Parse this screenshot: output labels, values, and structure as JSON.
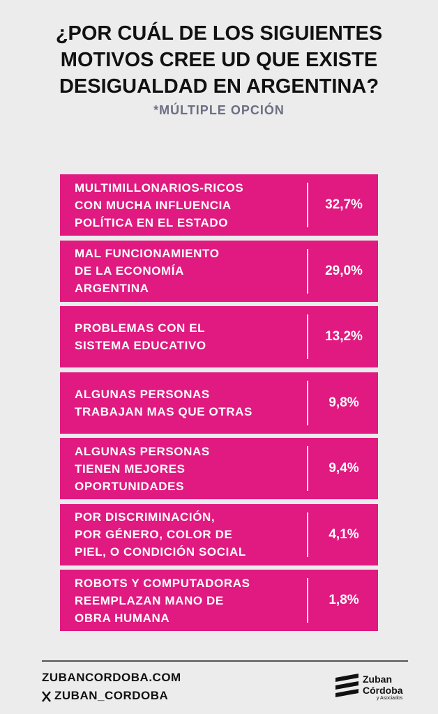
{
  "header": {
    "title": [
      "¿POR CUÁL DE LOS SIGUIENTES",
      "MOTIVOS CREE UD QUE EXISTE",
      "DESIGUALDAD EN ARGENTINA?"
    ],
    "subtitle": "*MÚLTIPLE OPCIÓN"
  },
  "table": {
    "rows": [
      [
        [
          "MULTIMILLONARIOS-RICOS",
          "CON MUCHA INFLUENCIA",
          "POLÍTICA EN EL ESTADO"
        ],
        "32,7%"
      ],
      [
        [
          "MAL FUNCIONAMIENTO",
          "DE LA ECONOMÍA",
          "ARGENTINA"
        ],
        "29,0%"
      ],
      [
        [
          "PROBLEMAS CON EL",
          "SISTEMA EDUCATIVO"
        ],
        "13,2%"
      ],
      [
        [
          "ALGUNAS PERSONAS",
          "TRABAJAN MAS QUE OTRAS"
        ],
        "9,8%"
      ],
      [
        [
          "ALGUNAS PERSONAS",
          "TIENEN MEJORES",
          "OPORTUNIDADES"
        ],
        "9,4%"
      ],
      [
        [
          "POR DISCRIMINACIÓN,",
          "POR GÉNERO, COLOR DE",
          "PIEL, O CONDICIÓN SOCIAL"
        ],
        "4,1%"
      ],
      [
        [
          "ROBOTS Y COMPUTADORAS",
          "REEMPLAZAN MANO DE",
          "OBRA HUMANA"
        ],
        "1,8%"
      ]
    ]
  },
  "footer": {
    "website": "ZUBANCORDOBA.COM",
    "handle": "ZUBAN_CORDOBA",
    "logo": [
      "Zuban",
      "Córdoba",
      "y Asociados"
    ]
  }
}
